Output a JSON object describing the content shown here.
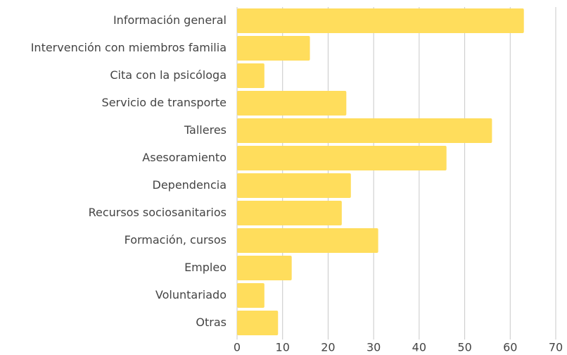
{
  "chart_data": {
    "type": "bar",
    "orientation": "horizontal",
    "categories": [
      "Información general",
      "Intervención con miembros familia",
      "Cita con la psicóloga",
      "Servicio de transporte",
      "Talleres",
      "Asesoramiento",
      "Dependencia",
      "Recursos sociosanitarios",
      "Formación, cursos",
      "Empleo",
      "Voluntariado",
      "Otras"
    ],
    "values": [
      63,
      16,
      6,
      24,
      56,
      46,
      25,
      23,
      31,
      12,
      6,
      9
    ],
    "color": "#ffdd5c",
    "xlim": [
      0,
      70
    ],
    "xticks": [
      0,
      10,
      20,
      30,
      40,
      50,
      60,
      70
    ],
    "grid": true
  }
}
